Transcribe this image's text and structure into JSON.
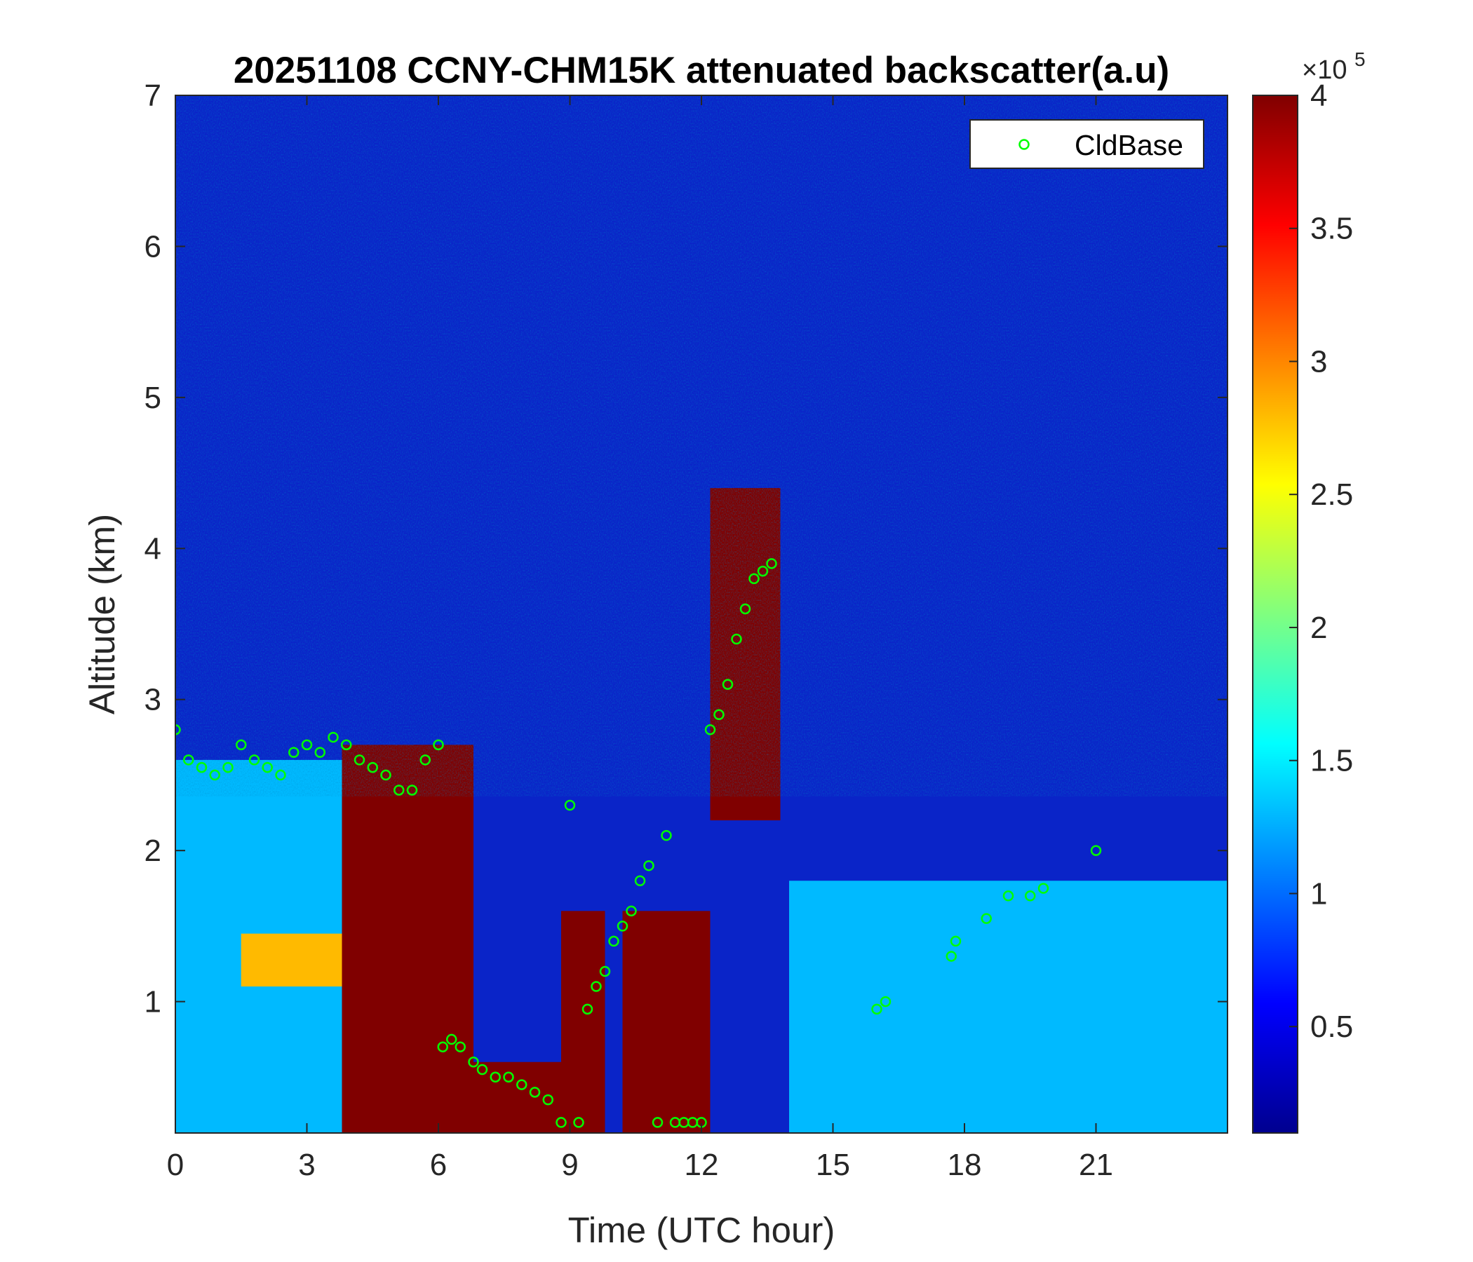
{
  "chart_data": {
    "type": "heatmap",
    "title": "20251108 CCNY-CHM15K attenuated backscatter(a.u)",
    "xlabel": "Time (UTC hour)",
    "ylabel": "Altitude (km)",
    "xlim": [
      0,
      24
    ],
    "ylim": [
      0.13,
      7
    ],
    "x_ticks": [
      0,
      3,
      6,
      9,
      12,
      15,
      18,
      21
    ],
    "y_ticks": [
      1,
      2,
      3,
      4,
      5,
      6,
      7
    ],
    "grid": false,
    "legend": {
      "position": "top-right",
      "entries": [
        "CldBase"
      ]
    },
    "colorbar": {
      "colormap": "jet",
      "range": [
        0.1,
        4
      ],
      "ticks": [
        0.5,
        1,
        1.5,
        2,
        2.5,
        3,
        3.5,
        4
      ],
      "exponent_label": "×10",
      "exponent": "5"
    },
    "field_description": [
      {
        "x": [
          0,
          3.8
        ],
        "base_km": 0.13,
        "top_km": 2.6,
        "value": 1.3
      },
      {
        "x": [
          1.5,
          3.8
        ],
        "base_km": 1.1,
        "top_km": 1.45,
        "value": 2.8
      },
      {
        "x": [
          3.8,
          6.8
        ],
        "base_km": 0.13,
        "top_km": 2.7,
        "value": 4
      },
      {
        "x": [
          6.8,
          8.8
        ],
        "base_km": 0.13,
        "top_km": 0.6,
        "value": 4
      },
      {
        "x": [
          8.8,
          9.8
        ],
        "base_km": 0.13,
        "top_km": 1.6,
        "value": 4
      },
      {
        "x": [
          10.2,
          12.2
        ],
        "base_km": 0.13,
        "top_km": 1.6,
        "value": 4
      },
      {
        "x": [
          12.2,
          13.8
        ],
        "base_km": 2.2,
        "top_km": 4.4,
        "value": 4
      },
      {
        "x": [
          14,
          24
        ],
        "base_km": 0.13,
        "top_km": 1.8,
        "value": 1.3
      }
    ],
    "series": [
      {
        "name": "CldBase",
        "color": "#00ff00",
        "x": [
          0.0,
          0.3,
          0.6,
          0.9,
          1.2,
          1.5,
          1.8,
          2.1,
          2.4,
          2.7,
          3.0,
          3.3,
          3.6,
          3.9,
          4.2,
          4.5,
          4.8,
          5.1,
          5.4,
          5.7,
          6.0,
          6.1,
          6.3,
          6.5,
          6.8,
          7.0,
          7.3,
          7.6,
          7.9,
          8.2,
          8.5,
          8.8,
          9.0,
          9.2,
          9.4,
          9.6,
          9.8,
          10.0,
          10.2,
          10.4,
          10.6,
          10.8,
          11.0,
          11.2,
          11.4,
          11.6,
          11.8,
          12.0,
          12.2,
          12.4,
          12.6,
          12.8,
          13.0,
          13.2,
          13.4,
          13.6,
          16.0,
          16.2,
          17.7,
          17.8,
          18.5,
          19.0,
          19.5,
          19.8,
          21.0
        ],
        "y": [
          2.8,
          2.6,
          2.55,
          2.5,
          2.55,
          2.7,
          2.6,
          2.55,
          2.5,
          2.65,
          2.7,
          2.65,
          2.75,
          2.7,
          2.6,
          2.55,
          2.5,
          2.4,
          2.4,
          2.6,
          2.7,
          0.7,
          0.75,
          0.7,
          0.6,
          0.55,
          0.5,
          0.5,
          0.45,
          0.4,
          0.35,
          0.2,
          2.3,
          0.2,
          0.95,
          1.1,
          1.2,
          1.4,
          1.5,
          1.6,
          1.8,
          1.9,
          0.2,
          2.1,
          0.2,
          0.2,
          0.2,
          0.2,
          2.8,
          2.9,
          3.1,
          3.4,
          3.6,
          3.8,
          3.85,
          3.9,
          0.95,
          1.0,
          1.3,
          1.4,
          1.55,
          1.7,
          1.7,
          1.75,
          2.0
        ]
      }
    ]
  }
}
